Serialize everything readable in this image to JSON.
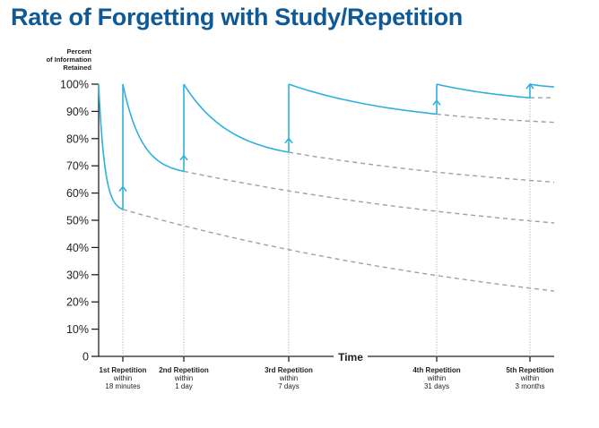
{
  "chart_data": {
    "type": "line",
    "title": "Rate of Forgetting with Study/Repetition",
    "ylabel": [
      "Percent",
      "of Information",
      "Retained"
    ],
    "xlabel": "Time",
    "ylim": [
      0,
      100
    ],
    "yticks": [
      "0",
      "10%",
      "20%",
      "30%",
      "40%",
      "50%",
      "60%",
      "70%",
      "80%",
      "90%",
      "100%"
    ],
    "repetitions": [
      {
        "label": [
          "1st Repetition",
          "within",
          "18 minutes"
        ],
        "retained_before": 54,
        "forgetting_without_review_end": 24
      },
      {
        "label": [
          "2nd Repetition",
          "within",
          "1 day"
        ],
        "retained_before": 68,
        "forgetting_without_review_end": 49
      },
      {
        "label": [
          "3rd Repetition",
          "within",
          "7 days"
        ],
        "retained_before": 75,
        "forgetting_without_review_end": 64
      },
      {
        "label": [
          "4th Repetition",
          "within",
          "31 days"
        ],
        "retained_before": 89,
        "forgetting_without_review_end": 86
      },
      {
        "label": [
          "5th Repetition",
          "within",
          "3 months"
        ],
        "retained_before": 95,
        "forgetting_without_review_end": 95
      }
    ],
    "final_retained": 99,
    "colors": {
      "curve": "#2fb0dc",
      "dashed": "#a0a0a0",
      "title": "#0f5a96"
    }
  }
}
